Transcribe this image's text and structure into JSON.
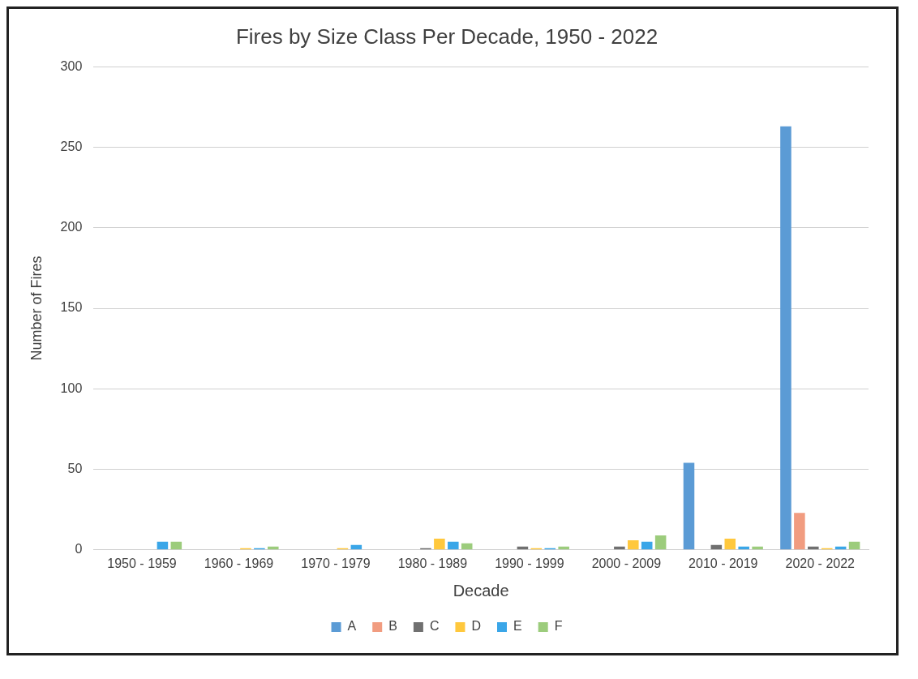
{
  "chart_data": {
    "type": "bar",
    "title": "Fires by Size Class Per Decade, 1950 - 2022",
    "xlabel": "Decade",
    "ylabel": "Number of Fires",
    "categories": [
      "1950 - 1959",
      "1960 - 1969",
      "1970 - 1979",
      "1980 - 1989",
      "1990 - 1999",
      "2000 - 2009",
      "2010 - 2019",
      "2020 - 2022"
    ],
    "series": [
      {
        "name": "A",
        "color": "#5b9bd5",
        "values": [
          0,
          0,
          0,
          0,
          0,
          0,
          54,
          263
        ]
      },
      {
        "name": "B",
        "color": "#f19c80",
        "values": [
          0,
          0,
          0,
          0,
          0,
          0,
          0,
          23
        ]
      },
      {
        "name": "C",
        "color": "#707070",
        "values": [
          0,
          0,
          0,
          1,
          2,
          2,
          3,
          2
        ]
      },
      {
        "name": "D",
        "color": "#ffc83d",
        "values": [
          0,
          1,
          1,
          7,
          1,
          6,
          7,
          1
        ]
      },
      {
        "name": "E",
        "color": "#3aa6e8",
        "values": [
          5,
          1,
          3,
          5,
          1,
          5,
          2,
          2
        ]
      },
      {
        "name": "F",
        "color": "#9ccc7c",
        "values": [
          5,
          2,
          0,
          4,
          2,
          9,
          2,
          5
        ]
      }
    ],
    "ylim": [
      0,
      300
    ],
    "yticks": [
      0,
      50,
      100,
      150,
      200,
      250,
      300
    ],
    "grid": "y",
    "legend": "bottom"
  }
}
